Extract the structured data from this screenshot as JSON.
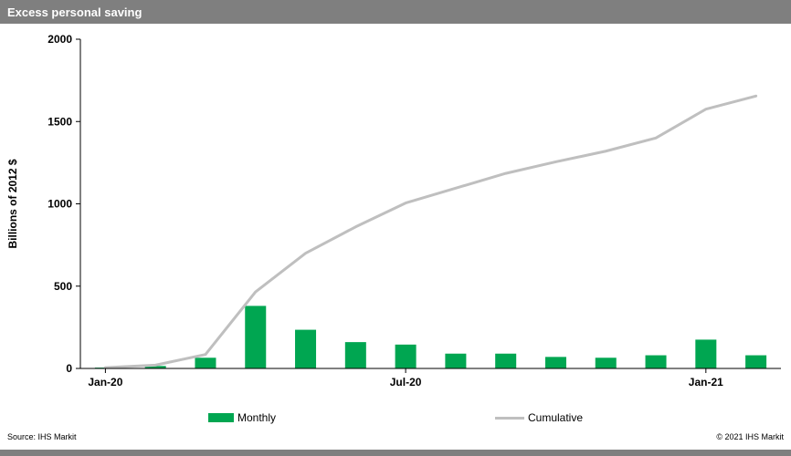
{
  "header": {
    "title": "Excess personal saving"
  },
  "legend": {
    "monthly": "Monthly",
    "cumulative": "Cumulative"
  },
  "footer": {
    "source": "Source: IHS Markit",
    "copyright": "© 2021 IHS Markit"
  },
  "colors": {
    "bar": "#00A651",
    "line": "#BFBFBF",
    "header_bg": "#7F7F7F",
    "axis": "#000000"
  },
  "chart_data": {
    "type": "bar",
    "title": "Excess personal saving",
    "xlabel": "",
    "ylabel": "Billions of 2012 $",
    "ylim": [
      0,
      2000
    ],
    "yticks": [
      0,
      500,
      1000,
      1500,
      2000
    ],
    "grid": false,
    "legend_position": "bottom",
    "categories": [
      "Jan-20",
      "Feb-20",
      "Mar-20",
      "Apr-20",
      "May-20",
      "Jun-20",
      "Jul-20",
      "Aug-20",
      "Sep-20",
      "Oct-20",
      "Nov-20",
      "Dec-20",
      "Jan-21",
      "Feb-21"
    ],
    "xticks": [
      {
        "index": 0,
        "label": "Jan-20"
      },
      {
        "index": 6,
        "label": "Jul-20"
      },
      {
        "index": 12,
        "label": "Jan-21"
      }
    ],
    "series": [
      {
        "name": "Monthly",
        "type": "bar",
        "color": "#00A651",
        "values": [
          5,
          15,
          65,
          380,
          235,
          160,
          145,
          90,
          90,
          70,
          65,
          80,
          175,
          80
        ]
      },
      {
        "name": "Cumulative",
        "type": "line",
        "color": "#BFBFBF",
        "values": [
          5,
          20,
          85,
          465,
          700,
          860,
          1005,
          1095,
          1185,
          1255,
          1320,
          1400,
          1575,
          1655
        ]
      }
    ]
  }
}
